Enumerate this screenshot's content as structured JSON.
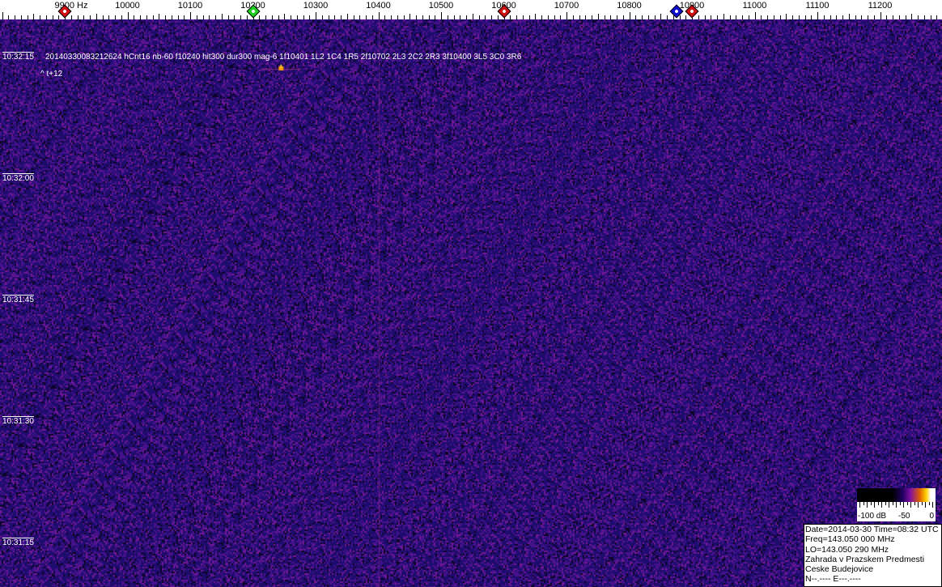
{
  "axis": {
    "unit_label": "Hz",
    "ticks": [
      9900,
      10000,
      10100,
      10200,
      10300,
      10400,
      10500,
      10600,
      10700,
      10800,
      10900,
      11000,
      11100,
      11200
    ],
    "markers": [
      {
        "freq": 9900,
        "color": "#d01010"
      },
      {
        "freq": 10200,
        "color": "#20d020"
      },
      {
        "freq": 10600,
        "color": "#d01010"
      },
      {
        "freq": 10875,
        "color": "#1010d0"
      },
      {
        "freq": 10900,
        "color": "#d01010"
      }
    ]
  },
  "times": [
    "10:32:15",
    "10:32:00",
    "10:31:45",
    "10:31:30",
    "10:31:15"
  ],
  "event": {
    "info": "20140330083212624 hCnt16 nb-60 f10240 hit300 dur300 mag-6 1f10401 1L2 1C4 1R5 2f10702 2L3 2C2 2R3 3f10400 3L5 3C0 3R6",
    "tplus": "^ t+12",
    "signal_freq": 10245
  },
  "scale": {
    "min": "-100 dB",
    "mid": "-50",
    "max": "0"
  },
  "station": {
    "lines": [
      "Date=2014-03-30 Time=08:32 UTC",
      "Freq=143.050 000 MHz",
      "LO=143.050 290 MHz",
      "Zahrada v Prazskem Predmesti",
      "Ceske Budejovice",
      "N--.---- E---.----"
    ]
  },
  "colors": {
    "background": "#1a0a55",
    "noise": "#7a1aa0"
  }
}
